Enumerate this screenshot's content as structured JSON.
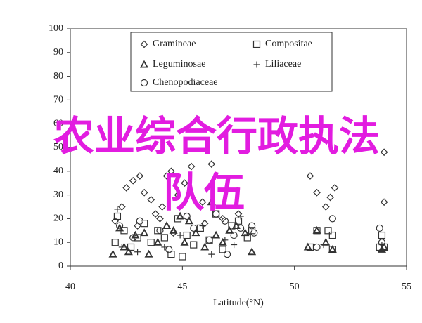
{
  "chart_data": {
    "type": "scatter",
    "xlabel": "Latitude(°N)",
    "xlim": [
      40,
      55
    ],
    "xticks": [
      40,
      45,
      50,
      55
    ],
    "ylim": [
      0,
      100
    ],
    "yticks": [
      0,
      10,
      20,
      30,
      40,
      50,
      60,
      70,
      80,
      90,
      100
    ],
    "grid": false,
    "legend": "top",
    "annotation": [
      "农业综合行政执法",
      "队伍"
    ],
    "annotation_color": "#e21ce0",
    "series": [
      {
        "name": "Gramineae",
        "marker": "diamond",
        "color": "#333333",
        "x": [
          42,
          42.3,
          42.5,
          42.8,
          43.1,
          43.3,
          43.6,
          43.8,
          44.1,
          44.3,
          44.5,
          44.8,
          45.1,
          45.4,
          46.3,
          45.9,
          46.8,
          44.6,
          43,
          50.7,
          51,
          51.4,
          51.6,
          51.8,
          54,
          54,
          47.5,
          46,
          44
        ],
        "values": [
          19,
          25,
          33,
          36,
          38,
          31,
          28,
          22,
          25,
          38,
          40,
          30,
          35,
          42,
          43,
          27,
          20,
          14,
          17,
          38,
          31,
          25,
          29,
          33,
          48,
          27,
          22,
          18,
          20
        ]
      },
      {
        "name": "Compositae",
        "marker": "square",
        "color": "#333333",
        "x": [
          42,
          42.1,
          42.4,
          42.7,
          43,
          43.3,
          43.6,
          43.9,
          44.2,
          44.5,
          44.8,
          45.2,
          45.5,
          45.8,
          46.2,
          46.5,
          46.8,
          47.2,
          47.5,
          47.9,
          48.1,
          50.7,
          51,
          51.5,
          51.7,
          51.7,
          53.9,
          54,
          53.8,
          45
        ],
        "values": [
          10,
          21,
          15,
          8,
          12,
          18,
          10,
          15,
          12,
          5,
          20,
          13,
          9,
          16,
          11,
          22,
          7,
          17,
          19,
          12,
          15,
          8,
          15,
          15,
          13,
          7,
          13,
          8,
          8,
          4
        ]
      },
      {
        "name": "Leguminosae",
        "marker": "triangle",
        "color": "#333333",
        "x": [
          41.9,
          42.2,
          42.4,
          42.6,
          42.9,
          43.3,
          43.5,
          43.9,
          44.3,
          44.6,
          44.9,
          45.1,
          45.3,
          45.6,
          46,
          46.3,
          46.5,
          46.8,
          47.1,
          47.4,
          47.8,
          48.1,
          50.6,
          51,
          51.4,
          51.7,
          53.9,
          54
        ],
        "values": [
          5,
          16,
          8,
          6,
          13,
          14,
          5,
          10,
          17,
          15,
          21,
          10,
          19,
          14,
          8,
          27,
          13,
          10,
          15,
          17,
          14,
          6,
          8,
          15,
          10,
          7,
          7,
          8
        ]
      },
      {
        "name": "Liliaceae",
        "marker": "plus",
        "color": "#333333",
        "x": [
          42.1,
          42.3,
          43,
          44.2,
          44.9,
          45.9,
          46.3,
          46.9,
          47.3,
          47.6,
          51.3,
          53.9
        ],
        "values": [
          24,
          8,
          6,
          8,
          13,
          17,
          5,
          11,
          9,
          21,
          9,
          9
        ]
      },
      {
        "name": "Chenopodiaceae",
        "marker": "circle",
        "color": "#333333",
        "x": [
          42.2,
          42.8,
          43.1,
          44,
          44.4,
          45.2,
          45.5,
          46.2,
          46.5,
          46.9,
          47.3,
          47.6,
          48.1,
          48.2,
          47,
          51,
          51.7,
          53.8,
          53.9
        ],
        "values": [
          17,
          12,
          19,
          15,
          7,
          21,
          16,
          11,
          22,
          19,
          13,
          16,
          17,
          14,
          5,
          8,
          20,
          16,
          10
        ]
      }
    ]
  }
}
